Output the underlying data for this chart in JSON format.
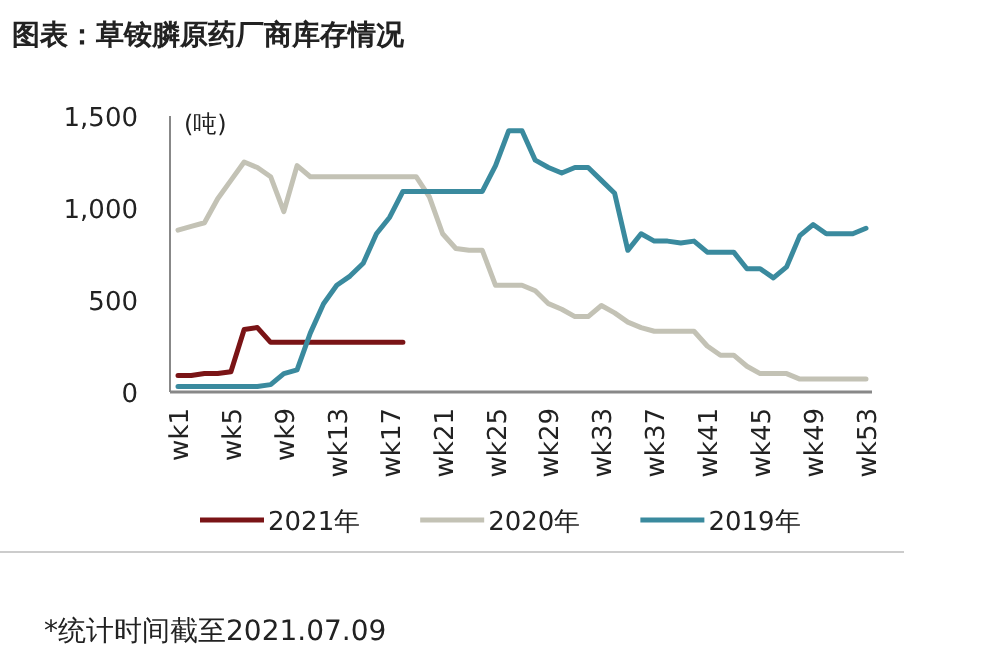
{
  "chart_data": {
    "type": "line",
    "title": "图表：草铵膦原药厂商库存情况",
    "ylabel": "(吨)",
    "annotations": [
      "*统计时间截至2021.07.09"
    ],
    "categories": [
      "wk1",
      null,
      null,
      null,
      "wk5",
      null,
      null,
      null,
      "wk9",
      null,
      null,
      null,
      "wk13",
      null,
      null,
      null,
      "wk17",
      null,
      null,
      null,
      "wk21",
      null,
      null,
      null,
      "wk25",
      null,
      null,
      null,
      "wk29",
      null,
      null,
      null,
      "wk33",
      null,
      null,
      null,
      "wk37",
      null,
      null,
      null,
      "wk41",
      null,
      null,
      null,
      "wk45",
      null,
      null,
      null,
      "wk49",
      null,
      null,
      null,
      "wk53"
    ],
    "series": [
      {
        "name": "2021年",
        "color": "#7a1416",
        "values": [
          90,
          90,
          100,
          100,
          110,
          340,
          350,
          270,
          270,
          270,
          270,
          270,
          270,
          270,
          270,
          270,
          270,
          270,
          null,
          null,
          null,
          null,
          null,
          null,
          null,
          null,
          null,
          null,
          null,
          null,
          null,
          null,
          null,
          null,
          null,
          null,
          null,
          null,
          null,
          null,
          null,
          null,
          null,
          null,
          null,
          null,
          null,
          null,
          null,
          null,
          null,
          null,
          null
        ]
      },
      {
        "name": "2020年",
        "color": "#c3c2b5",
        "values": [
          880,
          900,
          920,
          1050,
          1150,
          1250,
          1220,
          1170,
          980,
          1230,
          1170,
          1170,
          1170,
          1170,
          1170,
          1170,
          1170,
          1170,
          1170,
          1060,
          860,
          780,
          770,
          770,
          580,
          580,
          580,
          550,
          480,
          450,
          410,
          410,
          470,
          430,
          380,
          350,
          330,
          330,
          330,
          330,
          250,
          200,
          200,
          140,
          100,
          100,
          100,
          70,
          70,
          70,
          70,
          70,
          70
        ]
      },
      {
        "name": "2019年",
        "color": "#3a8a9e",
        "values": [
          30,
          30,
          30,
          30,
          30,
          30,
          30,
          40,
          100,
          120,
          320,
          480,
          580,
          630,
          700,
          860,
          950,
          1090,
          1090,
          1090,
          1090,
          1090,
          1090,
          1090,
          1230,
          1420,
          1420,
          1260,
          1220,
          1190,
          1220,
          1220,
          1150,
          1080,
          770,
          860,
          820,
          820,
          810,
          820,
          760,
          760,
          760,
          670,
          670,
          620,
          680,
          850,
          910,
          860,
          860,
          860,
          890
        ]
      }
    ],
    "ylim": [
      0,
      1500
    ],
    "yticks": [
      0,
      500,
      {
        "value": 1000,
        "label": "1,000"
      },
      {
        "value": 1500,
        "label": "1,500"
      }
    ],
    "legend": "bottom",
    "grid": false,
    "marker": "none",
    "line_style": "solid"
  }
}
